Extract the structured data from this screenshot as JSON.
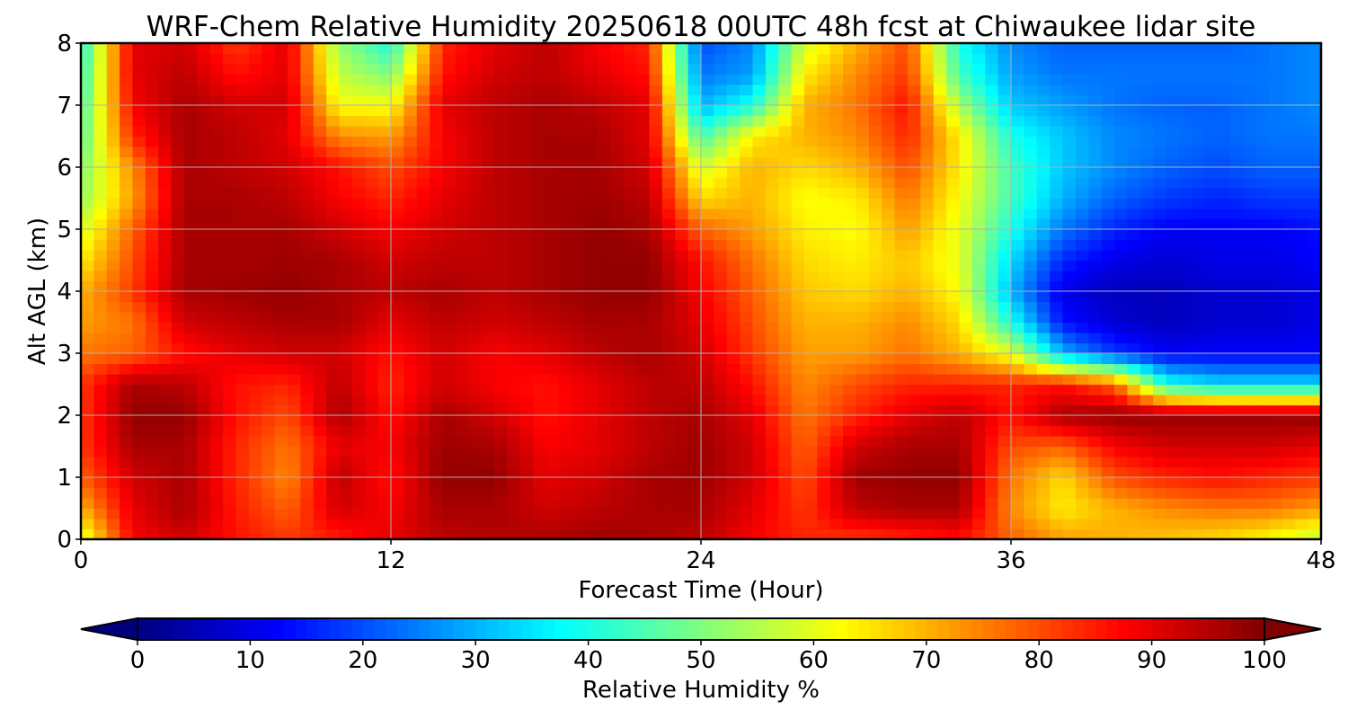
{
  "chart_data": {
    "type": "heatmap",
    "title": "WRF-Chem Relative Humidity 20250618 00UTC 48h fcst at Chiwaukee lidar site",
    "xlabel": "Forecast Time (Hour)",
    "ylabel": "Alt AGL (km)",
    "xlim": [
      0,
      48
    ],
    "ylim": [
      0,
      8
    ],
    "x_ticks": [
      "0",
      "12",
      "24",
      "36",
      "48"
    ],
    "y_ticks": [
      "0",
      "1",
      "2",
      "3",
      "4",
      "5",
      "6",
      "7",
      "8"
    ],
    "grid": true,
    "colorbar": {
      "label": "Relative Humidity %",
      "ticks": [
        "0",
        "10",
        "20",
        "30",
        "40",
        "50",
        "60",
        "70",
        "80",
        "90",
        "100"
      ],
      "range": [
        0,
        100
      ],
      "extend": "both",
      "colormap": "jet"
    },
    "x": [
      0,
      2,
      4,
      6,
      8,
      10,
      12,
      14,
      16,
      18,
      20,
      22,
      24,
      26,
      28,
      30,
      32,
      34,
      36,
      38,
      40,
      42,
      44,
      46,
      48
    ],
    "y": [
      0,
      0.5,
      1,
      1.5,
      2,
      2.5,
      3,
      3.5,
      4,
      4.5,
      5,
      5.5,
      6,
      6.5,
      7,
      7.5,
      8
    ],
    "z": [
      [
        58,
        88,
        92,
        86,
        82,
        85,
        90,
        94,
        95,
        96,
        97,
        96,
        94,
        88,
        84,
        82,
        84,
        86,
        78,
        72,
        70,
        68,
        66,
        62,
        56
      ],
      [
        70,
        90,
        96,
        85,
        78,
        92,
        88,
        96,
        96,
        92,
        94,
        96,
        96,
        90,
        82,
        94,
        96,
        96,
        74,
        64,
        70,
        74,
        76,
        76,
        72
      ],
      [
        78,
        92,
        96,
        84,
        74,
        94,
        86,
        98,
        98,
        90,
        92,
        96,
        97,
        92,
        80,
        97,
        98,
        98,
        76,
        66,
        80,
        84,
        86,
        84,
        82
      ],
      [
        82,
        96,
        96,
        84,
        76,
        90,
        88,
        97,
        96,
        88,
        90,
        94,
        97,
        92,
        78,
        92,
        96,
        96,
        80,
        78,
        88,
        92,
        92,
        92,
        90
      ],
      [
        82,
        98,
        98,
        86,
        80,
        96,
        86,
        96,
        92,
        86,
        90,
        94,
        96,
        90,
        76,
        84,
        90,
        94,
        86,
        96,
        98,
        98,
        98,
        98,
        98
      ],
      [
        82,
        96,
        94,
        86,
        84,
        94,
        84,
        92,
        88,
        86,
        90,
        94,
        94,
        86,
        74,
        80,
        84,
        84,
        84,
        86,
        78,
        40,
        34,
        34,
        34
      ],
      [
        76,
        78,
        86,
        90,
        92,
        92,
        86,
        92,
        88,
        90,
        94,
        96,
        92,
        82,
        72,
        72,
        76,
        70,
        60,
        30,
        18,
        12,
        12,
        12,
        12
      ],
      [
        72,
        76,
        92,
        94,
        96,
        96,
        90,
        94,
        92,
        94,
        96,
        96,
        90,
        80,
        70,
        70,
        74,
        66,
        40,
        14,
        8,
        6,
        8,
        8,
        10
      ],
      [
        70,
        82,
        96,
        97,
        98,
        96,
        94,
        96,
        94,
        96,
        98,
        98,
        88,
        78,
        68,
        66,
        70,
        62,
        30,
        10,
        6,
        6,
        8,
        8,
        10
      ],
      [
        64,
        80,
        96,
        96,
        97,
        96,
        92,
        94,
        94,
        96,
        98,
        98,
        86,
        76,
        66,
        64,
        68,
        60,
        34,
        16,
        10,
        8,
        10,
        10,
        12
      ],
      [
        58,
        78,
        96,
        96,
        96,
        92,
        88,
        92,
        94,
        96,
        98,
        96,
        78,
        72,
        64,
        62,
        72,
        60,
        40,
        24,
        16,
        12,
        12,
        12,
        14
      ],
      [
        52,
        72,
        96,
        96,
        94,
        88,
        84,
        90,
        94,
        96,
        97,
        94,
        66,
        70,
        62,
        64,
        76,
        62,
        44,
        30,
        22,
        18,
        16,
        18,
        18
      ],
      [
        50,
        74,
        96,
        94,
        92,
        86,
        80,
        88,
        94,
        96,
        96,
        92,
        58,
        70,
        66,
        70,
        80,
        64,
        44,
        32,
        26,
        22,
        20,
        22,
        22
      ],
      [
        46,
        84,
        96,
        94,
        90,
        74,
        72,
        88,
        94,
        96,
        96,
        90,
        44,
        64,
        70,
        74,
        84,
        64,
        40,
        32,
        26,
        24,
        22,
        24,
        24
      ],
      [
        44,
        88,
        96,
        92,
        92,
        62,
        62,
        90,
        94,
        96,
        94,
        90,
        30,
        40,
        70,
        76,
        86,
        54,
        32,
        28,
        24,
        22,
        22,
        24,
        26
      ],
      [
        42,
        90,
        94,
        86,
        90,
        56,
        50,
        86,
        92,
        94,
        90,
        86,
        24,
        28,
        64,
        74,
        82,
        44,
        28,
        24,
        24,
        24,
        24,
        24,
        26
      ],
      [
        40,
        90,
        92,
        82,
        90,
        52,
        40,
        84,
        90,
        94,
        88,
        84,
        20,
        26,
        58,
        70,
        80,
        40,
        26,
        22,
        22,
        22,
        22,
        24,
        26
      ]
    ]
  }
}
